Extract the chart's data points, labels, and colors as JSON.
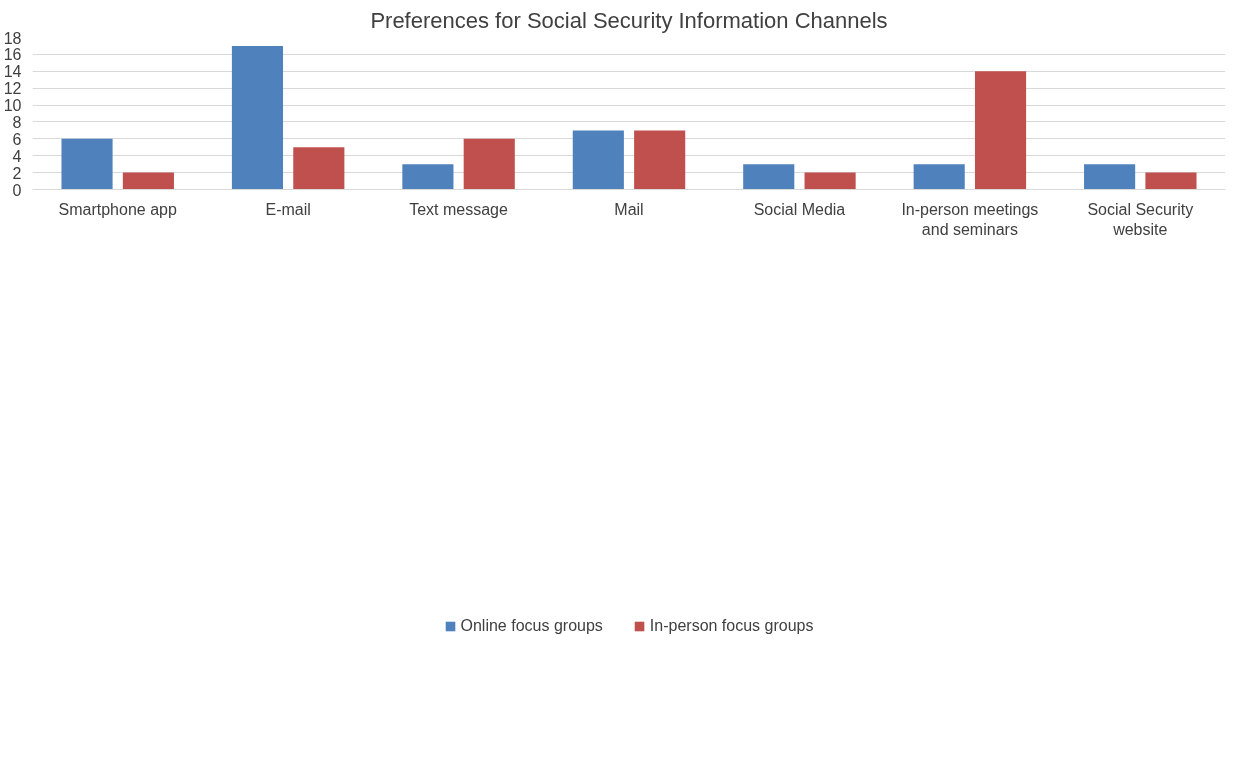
{
  "chart_data": {
    "type": "bar",
    "title": "Preferences for Social Security Information Channels",
    "categories": [
      "Smartphone app",
      "E-mail",
      "Text message",
      "Mail",
      "Social Media",
      "In-person meetings and seminars",
      "Social Security website"
    ],
    "series": [
      {
        "name": "Online focus groups",
        "color": "#4f81bd",
        "values": [
          6,
          17,
          3,
          7,
          3,
          3,
          3
        ]
      },
      {
        "name": "In-person focus groups",
        "color": "#c0504d",
        "values": [
          2,
          5,
          6,
          7,
          2,
          14,
          2
        ]
      }
    ],
    "ylim": [
      0,
      18
    ],
    "yticks": [
      0,
      2,
      4,
      6,
      8,
      10,
      12,
      14,
      16,
      18
    ],
    "grid": "y",
    "legend": "bottom"
  }
}
